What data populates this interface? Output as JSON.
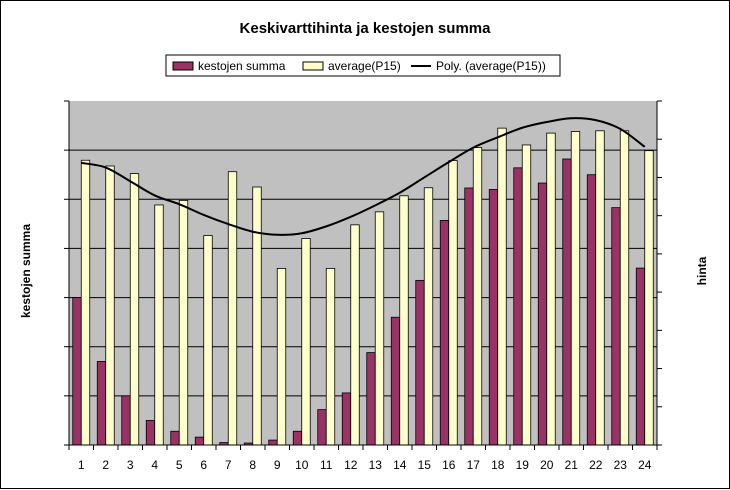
{
  "chart_data": {
    "type": "bar",
    "title": "Keskivarttihinta ja kestojen summa",
    "y_left_label": "kestojen summa",
    "y_right_label": "hinta",
    "legend_position": "top",
    "grid": true,
    "plot_background": "#C0C0C0",
    "categories": [
      "1",
      "2",
      "3",
      "4",
      "5",
      "6",
      "7",
      "8",
      "9",
      "10",
      "11",
      "12",
      "13",
      "14",
      "15",
      "16",
      "17",
      "18",
      "19",
      "20",
      "21",
      "22",
      "23",
      "24"
    ],
    "y_left_gridline_count": 7,
    "y_right_tick_count": 9,
    "series": [
      {
        "name": "kestojen summa",
        "axis": "left",
        "color": "#993366",
        "values": [
          3.0,
          1.7,
          1.0,
          0.5,
          0.28,
          0.16,
          0.05,
          0.04,
          0.1,
          0.28,
          0.72,
          1.06,
          1.88,
          2.6,
          3.35,
          4.57,
          5.23,
          5.2,
          5.64,
          5.33,
          5.82,
          5.5,
          4.83,
          3.6
        ]
      },
      {
        "name": "average(P15)",
        "axis": "right",
        "color": "#FFFFCC",
        "values": [
          7.45,
          7.3,
          7.1,
          6.28,
          6.4,
          5.48,
          7.15,
          6.75,
          4.62,
          5.4,
          4.62,
          5.76,
          6.1,
          6.52,
          6.73,
          7.44,
          7.78,
          8.29,
          7.85,
          8.16,
          8.2,
          8.22,
          8.22,
          7.7
        ]
      },
      {
        "name": "Poly. (average(P15))",
        "axis": "right",
        "color": "#000000",
        "type": "line",
        "values": [
          7.38,
          7.26,
          6.9,
          6.53,
          6.3,
          6.02,
          5.78,
          5.58,
          5.5,
          5.54,
          5.72,
          5.97,
          6.27,
          6.6,
          7.0,
          7.4,
          7.78,
          8.05,
          8.3,
          8.45,
          8.55,
          8.5,
          8.27,
          7.8
        ]
      }
    ],
    "y_left_range": [
      0,
      7
    ],
    "y_right_range": [
      0,
      9
    ]
  }
}
